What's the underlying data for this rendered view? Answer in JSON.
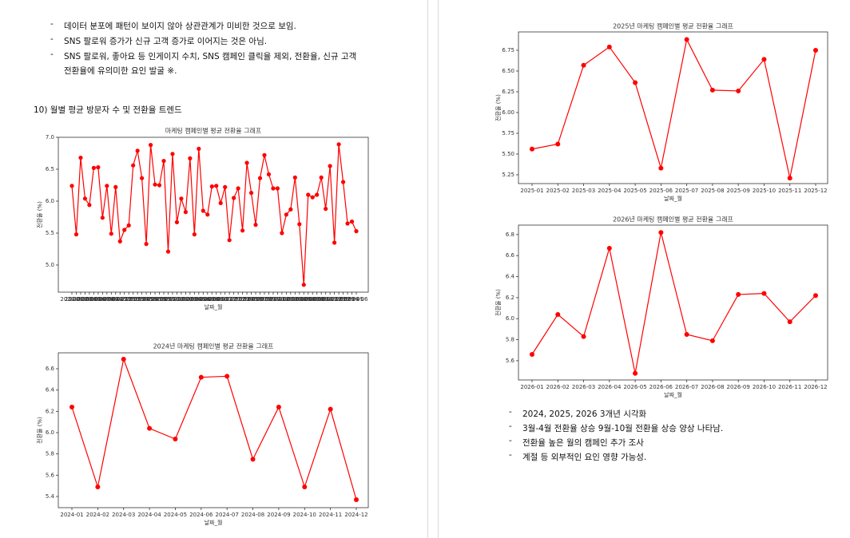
{
  "document": {
    "left_bullets": [
      "데이터 분포에 패턴이 보이지 않아 상관관계가 미비한 것으로 보임.",
      "SNS 팔로워 증가가 신규 고객 증가로 이어지는 것은 아님.",
      "SNS 팔로워, 좋아요 등 인게이지 수치, SNS 캠페인 클릭율 제외, 전환율, 신규 고객 전환율에 유의미한 요인 발굴 ※."
    ],
    "section_heading": "10) 월별 평균 방문자 수 및 전환율 트렌드",
    "right_bullets": [
      "2024, 2025, 2026 3개년 시각화",
      "3월-4월 전환율 상승 9월-10월 전환율 상승 양상 나타남.",
      "전환율 높은 월의 캠페인 추가 조사",
      "계절 등 외부적인 요인 영향 가능성."
    ]
  },
  "chart_data": [
    {
      "type": "line",
      "title": "마케팅 캠페인별 평균 전환율 그래프",
      "x_label": "날짜_월",
      "y_label": "전환율 (%)",
      "color": "#ff0000",
      "categories": [
        "2024-01",
        "2024-02",
        "2024-03",
        "2024-04",
        "2024-05",
        "2024-06",
        "2024-07",
        "2024-08",
        "2024-09",
        "2024-10",
        "2024-11",
        "2024-12",
        "2025-01",
        "2025-02",
        "2025-03",
        "2025-04",
        "2025-05",
        "2025-06",
        "2025-07",
        "2025-08",
        "2025-09",
        "2025-10",
        "2025-11",
        "2025-12",
        "2026-01",
        "2026-02",
        "2026-03",
        "2026-04",
        "2026-05",
        "2026-06",
        "2026-07",
        "2026-08",
        "2026-09",
        "2026-10",
        "2026-11",
        "2026-12",
        "2027-01",
        "2027-02",
        "2027-03",
        "2027-04",
        "2027-05",
        "2027-06",
        "2027-07",
        "2027-08",
        "2027-09",
        "2027-10",
        "2027-11",
        "2027-12",
        "2028-01",
        "2028-02",
        "2028-03",
        "2028-04",
        "2028-05",
        "2028-06",
        "2028-07",
        "2028-08",
        "2028-09",
        "2028-10",
        "2028-11",
        "2028-12",
        "2029-01",
        "2029-02",
        "2029-03",
        "2029-04",
        "2029-05",
        "2029-06"
      ],
      "values": [
        6.24,
        5.48,
        6.68,
        6.04,
        5.94,
        6.52,
        6.53,
        5.74,
        6.24,
        5.49,
        6.22,
        5.37,
        5.55,
        5.62,
        6.56,
        6.79,
        6.36,
        5.33,
        6.88,
        6.26,
        6.25,
        6.63,
        5.21,
        6.74,
        5.67,
        6.04,
        5.83,
        6.67,
        5.48,
        6.82,
        5.85,
        5.79,
        6.23,
        6.24,
        5.97,
        6.22,
        5.39,
        6.05,
        6.2,
        5.54,
        6.6,
        6.13,
        5.63,
        6.36,
        6.72,
        6.42,
        6.2,
        6.2,
        5.5,
        5.79,
        5.87,
        6.37,
        5.64,
        4.69,
        6.1,
        6.06,
        6.1,
        6.37,
        5.88,
        6.55,
        5.35,
        6.89,
        6.3,
        5.65,
        5.68,
        5.53
      ],
      "ylim": [
        4.575,
        7.0
      ],
      "yticks": [
        {
          "value": 5,
          "label": "5.0"
        },
        5.5,
        {
          "value": 6,
          "label": "6.0"
        },
        6.5,
        {
          "value": 7,
          "label": "7.0"
        }
      ]
    },
    {
      "type": "line",
      "title": "2024년 마케팅 캠페인별 평균 전환율 그래프",
      "x_label": "날짜_월",
      "y_label": "전환율 (%)",
      "color": "#ff0000",
      "categories": [
        "2024-01",
        "2024-02",
        "2024-03",
        "2024-04",
        "2024-05",
        "2024-06",
        "2024-07",
        "2024-08",
        "2024-09",
        "2024-10",
        "2024-11",
        "2024-12"
      ],
      "values": [
        6.24,
        5.49,
        6.69,
        6.04,
        5.94,
        6.52,
        6.53,
        5.75,
        6.24,
        5.49,
        6.22,
        5.37
      ],
      "ylim": [
        5.295,
        6.75
      ],
      "yticks": [
        5.4,
        5.6,
        5.8,
        {
          "value": 6,
          "label": "6.0"
        },
        6.2,
        6.4,
        6.6
      ]
    },
    {
      "type": "line",
      "title": "2025년 마케팅 캠페인별 평균 전환율 그래프",
      "x_label": "날짜_월",
      "y_label": "전환율 (%)",
      "color": "#ff0000",
      "categories": [
        "2025-01",
        "2025-02",
        "2025-03",
        "2025-04",
        "2025-05",
        "2025-06",
        "2025-07",
        "2025-08",
        "2025-09",
        "2025-10",
        "2025-11",
        "2025-12"
      ],
      "values": [
        5.56,
        5.62,
        6.57,
        6.79,
        6.36,
        5.33,
        6.88,
        6.27,
        6.26,
        6.64,
        5.21,
        6.75
      ],
      "ylim": [
        5.144,
        6.971
      ],
      "yticks": [
        5.25,
        {
          "value": 5.5,
          "label": "5.50"
        },
        5.75,
        {
          "value": 6,
          "label": "6.00"
        },
        6.25,
        {
          "value": 6.5,
          "label": "6.50"
        },
        6.75
      ]
    },
    {
      "type": "line",
      "title": "2026년 마케팅 캠페인별 평균 전환율 그래프",
      "x_label": "날짜_월",
      "y_label": "전환율 (%)",
      "color": "#ff0000",
      "categories": [
        "2026-01",
        "2026-02",
        "2026-03",
        "2026-04",
        "2026-05",
        "2026-06",
        "2026-07",
        "2026-08",
        "2026-09",
        "2026-10",
        "2026-11",
        "2026-12"
      ],
      "values": [
        5.66,
        6.04,
        5.83,
        6.67,
        5.48,
        6.82,
        5.85,
        5.79,
        6.23,
        6.24,
        5.97,
        6.22
      ],
      "ylim": [
        5.417,
        6.89
      ],
      "yticks": [
        5.6,
        5.8,
        {
          "value": 6,
          "label": "6.0"
        },
        6.2,
        6.4,
        6.6,
        6.8
      ]
    }
  ]
}
